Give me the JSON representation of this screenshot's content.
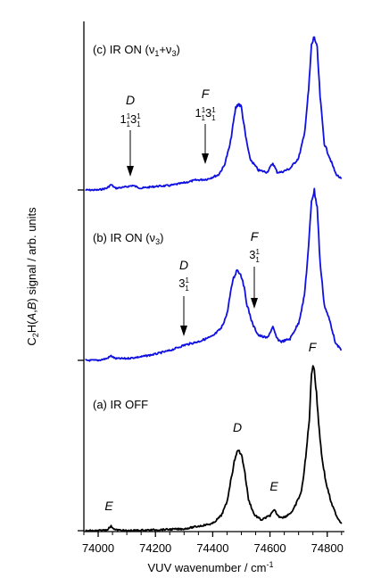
{
  "chart_data": {
    "type": "line",
    "title": "",
    "xlabel": "VUV wavenumber / cm",
    "xlabel_sup": "-1",
    "ylabel": "C2H(A,B) signal / arb. units",
    "xlim": [
      73950,
      74860
    ],
    "xticks": [
      74000,
      74200,
      74400,
      74600,
      74800
    ],
    "series": [
      {
        "name": "(c) IR ON (ν1+ν3)",
        "color": "#1010e0",
        "x": [
          73955,
          74000,
          74030,
          74045,
          74060,
          74090,
          74120,
          74150,
          74200,
          74250,
          74300,
          74340,
          74380,
          74420,
          74440,
          74460,
          74480,
          74490,
          74500,
          74515,
          74530,
          74560,
          74590,
          74610,
          74625,
          74640,
          74670,
          74700,
          74720,
          74735,
          74745,
          74755,
          74765,
          74775,
          74790,
          74810,
          74830,
          74850
        ],
        "y": [
          0.0,
          0.0,
          0.02,
          0.06,
          0.02,
          0.03,
          0.05,
          0.02,
          0.04,
          0.05,
          0.08,
          0.11,
          0.12,
          0.17,
          0.27,
          0.5,
          0.92,
          0.97,
          0.93,
          0.6,
          0.35,
          0.22,
          0.2,
          0.3,
          0.2,
          0.2,
          0.24,
          0.36,
          0.62,
          1.12,
          1.62,
          1.72,
          1.58,
          1.05,
          0.52,
          0.35,
          0.18,
          0.12
        ]
      },
      {
        "name": "(b) IR ON (ν3)",
        "color": "#1010e0",
        "x": [
          73955,
          74000,
          74030,
          74045,
          74060,
          74100,
          74150,
          74200,
          74250,
          74300,
          74350,
          74400,
          74430,
          74450,
          74470,
          74485,
          74495,
          74505,
          74520,
          74540,
          74560,
          74590,
          74610,
          74625,
          74640,
          74670,
          74700,
          74720,
          74735,
          74745,
          74755,
          74765,
          74775,
          74790,
          74810,
          74830,
          74850
        ],
        "y": [
          0.0,
          0.0,
          0.02,
          0.05,
          0.02,
          0.02,
          0.04,
          0.07,
          0.11,
          0.17,
          0.21,
          0.27,
          0.36,
          0.52,
          0.9,
          1.02,
          0.98,
          0.9,
          0.62,
          0.4,
          0.28,
          0.25,
          0.37,
          0.24,
          0.21,
          0.24,
          0.42,
          0.72,
          1.27,
          1.8,
          1.9,
          1.72,
          1.1,
          0.62,
          0.43,
          0.18,
          0.12
        ]
      },
      {
        "name": "(a) IR OFF",
        "color": "#000000",
        "x": [
          73955,
          74000,
          74030,
          74045,
          74060,
          74100,
          74200,
          74300,
          74350,
          74400,
          74430,
          74450,
          74465,
          74480,
          74490,
          74500,
          74510,
          74525,
          74545,
          74570,
          74600,
          74615,
          74630,
          74650,
          74680,
          74710,
          74725,
          74738,
          74745,
          74750,
          74755,
          74762,
          74770,
          74780,
          74795,
          74815,
          74835,
          74850
        ],
        "y": [
          0.0,
          0.0,
          0.01,
          0.05,
          0.01,
          0.0,
          0.01,
          0.02,
          0.05,
          0.08,
          0.17,
          0.32,
          0.6,
          0.85,
          0.9,
          0.86,
          0.7,
          0.35,
          0.18,
          0.12,
          0.17,
          0.23,
          0.16,
          0.15,
          0.22,
          0.44,
          0.82,
          1.28,
          1.75,
          1.88,
          1.8,
          1.55,
          1.22,
          0.86,
          0.55,
          0.3,
          0.15,
          0.08
        ]
      }
    ],
    "annotations": {
      "panel_c": {
        "label": "(c) IR ON (ν",
        "sub1": "1",
        "plus": "+ν",
        "sub2": "3",
        "close": ")"
      },
      "panel_b": {
        "label": "(b) IR ON (ν",
        "sub1": "3",
        "close": ")"
      },
      "panel_a": {
        "label": "(a) IR OFF"
      },
      "c_D": {
        "letter": "D",
        "band": "1",
        "band_sup1": "1",
        "band_sub1": "1",
        "band_mid": "3",
        "band_sup2": "1",
        "band_sub2": "1",
        "arrow_x": 74120
      },
      "c_F": {
        "letter": "F",
        "band": "1",
        "band_sup1": "1",
        "band_sub1": "1",
        "band_mid": "3",
        "band_sup2": "1",
        "band_sub2": "1",
        "arrow_x": 74380
      },
      "b_D": {
        "letter": "D",
        "band_mid": "3",
        "band_sup": "1",
        "band_sub": "1",
        "arrow_x": 74305
      },
      "b_F": {
        "letter": "F",
        "band_mid": "3",
        "band_sup": "1",
        "band_sub": "1",
        "arrow_x": 74550
      },
      "a_E1": {
        "letter": "E",
        "x": 74050
      },
      "a_D": {
        "letter": "D",
        "x": 74490
      },
      "a_E2": {
        "letter": "E",
        "x": 74615
      },
      "a_F": {
        "letter": "F",
        "x": 74752
      }
    },
    "colors": {
      "axis": "#000000",
      "blue_trace": "#1010e0",
      "black_trace": "#000000",
      "D_label": "#1a1a8c",
      "F_label": "#8b1a1a",
      "E_label": "#2a7a2a"
    },
    "grid": false
  }
}
